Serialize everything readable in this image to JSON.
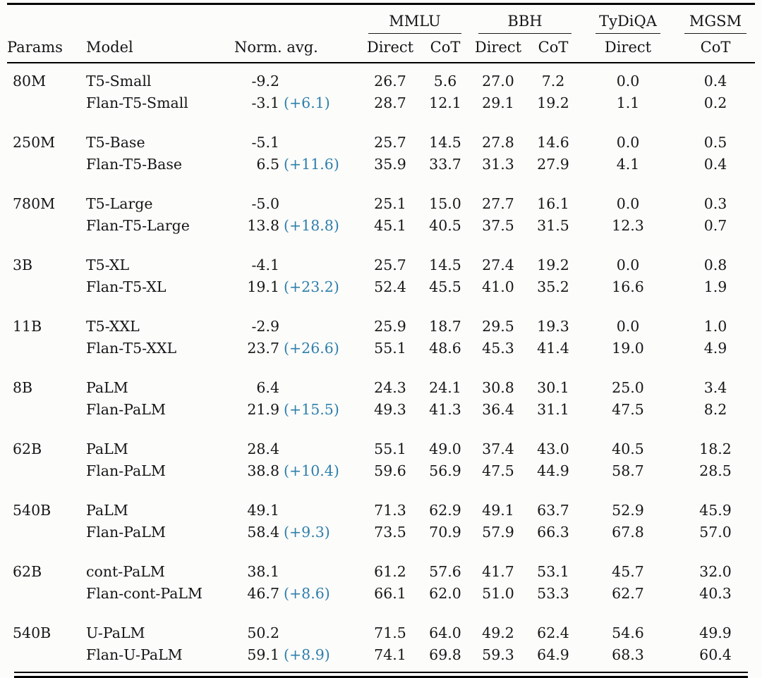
{
  "accent_color": "#2e7fab",
  "table": {
    "left_headers": [
      "Params",
      "Model",
      "Norm. avg."
    ],
    "col_groups": [
      {
        "label": "MMLU",
        "sub": [
          "Direct",
          "CoT"
        ]
      },
      {
        "label": "BBH",
        "sub": [
          "Direct",
          "CoT"
        ]
      },
      {
        "label": "TyDiQA",
        "sub": [
          "Direct"
        ]
      },
      {
        "label": "MGSM",
        "sub": [
          "CoT"
        ]
      }
    ],
    "groups": [
      {
        "params": "80M",
        "rows": [
          {
            "model": "T5-Small",
            "norm_avg": "-9.2",
            "delta": "",
            "values": [
              "26.7",
              "5.6",
              "27.0",
              "7.2",
              "0.0",
              "0.4"
            ]
          },
          {
            "model": "Flan-T5-Small",
            "norm_avg": "-3.1",
            "delta": "(+6.1)",
            "values": [
              "28.7",
              "12.1",
              "29.1",
              "19.2",
              "1.1",
              "0.2"
            ]
          }
        ]
      },
      {
        "params": "250M",
        "rows": [
          {
            "model": "T5-Base",
            "norm_avg": "-5.1",
            "delta": "",
            "values": [
              "25.7",
              "14.5",
              "27.8",
              "14.6",
              "0.0",
              "0.5"
            ]
          },
          {
            "model": "Flan-T5-Base",
            "norm_avg": "6.5",
            "delta": "(+11.6)",
            "values": [
              "35.9",
              "33.7",
              "31.3",
              "27.9",
              "4.1",
              "0.4"
            ]
          }
        ]
      },
      {
        "params": "780M",
        "rows": [
          {
            "model": "T5-Large",
            "norm_avg": "-5.0",
            "delta": "",
            "values": [
              "25.1",
              "15.0",
              "27.7",
              "16.1",
              "0.0",
              "0.3"
            ]
          },
          {
            "model": "Flan-T5-Large",
            "norm_avg": "13.8",
            "delta": "(+18.8)",
            "values": [
              "45.1",
              "40.5",
              "37.5",
              "31.5",
              "12.3",
              "0.7"
            ]
          }
        ]
      },
      {
        "params": "3B",
        "rows": [
          {
            "model": "T5-XL",
            "norm_avg": "-4.1",
            "delta": "",
            "values": [
              "25.7",
              "14.5",
              "27.4",
              "19.2",
              "0.0",
              "0.8"
            ]
          },
          {
            "model": "Flan-T5-XL",
            "norm_avg": "19.1",
            "delta": "(+23.2)",
            "values": [
              "52.4",
              "45.5",
              "41.0",
              "35.2",
              "16.6",
              "1.9"
            ]
          }
        ]
      },
      {
        "params": "11B",
        "rows": [
          {
            "model": "T5-XXL",
            "norm_avg": "-2.9",
            "delta": "",
            "values": [
              "25.9",
              "18.7",
              "29.5",
              "19.3",
              "0.0",
              "1.0"
            ]
          },
          {
            "model": "Flan-T5-XXL",
            "norm_avg": "23.7",
            "delta": "(+26.6)",
            "values": [
              "55.1",
              "48.6",
              "45.3",
              "41.4",
              "19.0",
              "4.9"
            ]
          }
        ]
      },
      {
        "params": "8B",
        "rows": [
          {
            "model": "PaLM",
            "norm_avg": "6.4",
            "delta": "",
            "values": [
              "24.3",
              "24.1",
              "30.8",
              "30.1",
              "25.0",
              "3.4"
            ]
          },
          {
            "model": "Flan-PaLM",
            "norm_avg": "21.9",
            "delta": "(+15.5)",
            "values": [
              "49.3",
              "41.3",
              "36.4",
              "31.1",
              "47.5",
              "8.2"
            ]
          }
        ]
      },
      {
        "params": "62B",
        "rows": [
          {
            "model": "PaLM",
            "norm_avg": "28.4",
            "delta": "",
            "values": [
              "55.1",
              "49.0",
              "37.4",
              "43.0",
              "40.5",
              "18.2"
            ]
          },
          {
            "model": "Flan-PaLM",
            "norm_avg": "38.8",
            "delta": "(+10.4)",
            "values": [
              "59.6",
              "56.9",
              "47.5",
              "44.9",
              "58.7",
              "28.5"
            ]
          }
        ]
      },
      {
        "params": "540B",
        "rows": [
          {
            "model": "PaLM",
            "norm_avg": "49.1",
            "delta": "",
            "values": [
              "71.3",
              "62.9",
              "49.1",
              "63.7",
              "52.9",
              "45.9"
            ]
          },
          {
            "model": "Flan-PaLM",
            "norm_avg": "58.4",
            "delta": "(+9.3)",
            "values": [
              "73.5",
              "70.9",
              "57.9",
              "66.3",
              "67.8",
              "57.0"
            ]
          }
        ]
      },
      {
        "params": "62B",
        "rows": [
          {
            "model": "cont-PaLM",
            "norm_avg": "38.1",
            "delta": "",
            "values": [
              "61.2",
              "57.6",
              "41.7",
              "53.1",
              "45.7",
              "32.0"
            ]
          },
          {
            "model": "Flan-cont-PaLM",
            "norm_avg": "46.7",
            "delta": "(+8.6)",
            "values": [
              "66.1",
              "62.0",
              "51.0",
              "53.3",
              "62.7",
              "40.3"
            ]
          }
        ]
      },
      {
        "params": "540B",
        "rows": [
          {
            "model": "U-PaLM",
            "norm_avg": "50.2",
            "delta": "",
            "values": [
              "71.5",
              "64.0",
              "49.2",
              "62.4",
              "54.6",
              "49.9"
            ]
          },
          {
            "model": "Flan-U-PaLM",
            "norm_avg": "59.1",
            "delta": "(+8.9)",
            "values": [
              "74.1",
              "69.8",
              "59.3",
              "64.9",
              "68.3",
              "60.4"
            ]
          }
        ]
      }
    ]
  }
}
